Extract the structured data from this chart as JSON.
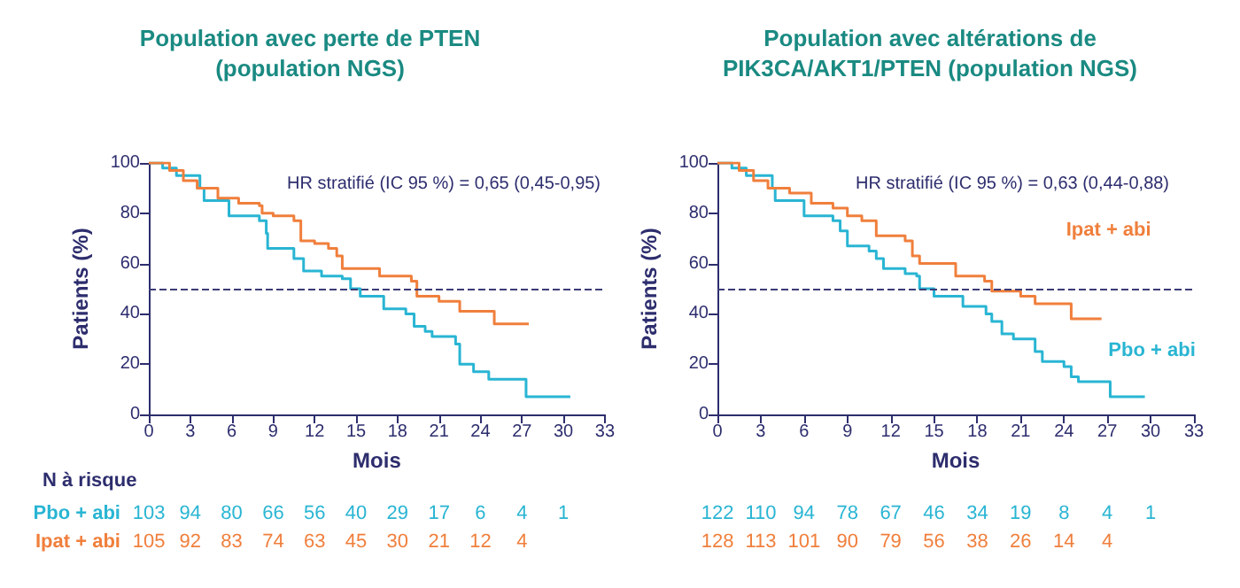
{
  "chart_data": [
    {
      "type": "step",
      "title": "Population avec perte de PTEN\n(population NGS)",
      "xlabel": "Mois",
      "ylabel": "Patients (%)",
      "xlim": [
        0,
        33
      ],
      "xticks": [
        0,
        3,
        6,
        9,
        12,
        15,
        18,
        21,
        24,
        27,
        30,
        33
      ],
      "ylim": [
        0,
        100
      ],
      "yticks": [
        0,
        20,
        40,
        60,
        80,
        100
      ],
      "grid": false,
      "legend": "bottom left",
      "marker": "none",
      "line_style": "solid",
      "ref_lines": [
        {
          "axis": "y",
          "value": 50,
          "color": "#3c3c78",
          "line_style": "dashed"
        }
      ],
      "annotations": [
        "HR stratifié (IC 95 %) = 0,65 (0,45-0,95)",
        "N à risque",
        "103 94 80 66 56 40 29 17 6 4 1",
        "105 92 83 74 63 45 30 21 12 4"
      ],
      "series": [
        {
          "name": "Pbo + abi",
          "color": "#29b5d3",
          "x": [
            0,
            1,
            2,
            3.7,
            4,
            5.8,
            8,
            8.5,
            8.6,
            10.5,
            10.5,
            11.2,
            12.5,
            14,
            14.6,
            15.3,
            16.7,
            17,
            18.6,
            19.2,
            20,
            20.5,
            22,
            22.2,
            22.5,
            23.5,
            24.6,
            27.2,
            27.3,
            30.5
          ],
          "values": [
            100,
            98,
            95,
            90,
            85,
            79,
            77,
            72,
            66,
            65,
            62,
            57,
            55,
            54,
            50,
            47,
            47,
            42,
            40,
            35,
            33,
            31,
            31,
            28,
            20,
            17,
            14,
            14,
            7,
            7
          ]
        },
        {
          "name": "Ipat + abi",
          "color": "#f07f3c",
          "x": [
            0,
            1.5,
            2.5,
            3.5,
            5,
            6.5,
            8,
            8.2,
            9,
            10.5,
            11,
            12,
            13,
            13.6,
            14,
            16.6,
            16.7,
            19,
            19.4,
            21,
            22.5,
            25,
            27.5
          ],
          "values": [
            100,
            97,
            93,
            90,
            86,
            84,
            83,
            80,
            79,
            77,
            69,
            68,
            66,
            63,
            58,
            58,
            55,
            53,
            47,
            45,
            41,
            36,
            36
          ]
        }
      ]
    },
    {
      "type": "step",
      "title": "Population avec altérations de\nPIK3CA/AKT1/PTEN (population NGS)",
      "xlabel": "Mois",
      "ylabel": "Patients (%)",
      "xlim": [
        0,
        33
      ],
      "xticks": [
        0,
        3,
        6,
        9,
        12,
        15,
        18,
        21,
        24,
        27,
        30,
        33
      ],
      "ylim": [
        0,
        100
      ],
      "yticks": [
        0,
        20,
        40,
        60,
        80,
        100
      ],
      "grid": false,
      "legend": false,
      "marker": "none",
      "line_style": "solid",
      "ref_lines": [
        {
          "axis": "y",
          "value": 50,
          "color": "#3c3c78",
          "line_style": "dashed"
        }
      ],
      "annotations": [
        "HR stratifié (IC 95 %) = 0,63 (0,44-0,88)",
        "122 110 94 78 67 46 34 19 8 4 1",
        "128 113 101 90 79 56 38 26 14 4"
      ],
      "series": [
        {
          "name": "Pbo + abi",
          "color": "#29b5d3",
          "x": [
            0,
            1,
            2,
            3.8,
            4,
            6,
            8,
            8.5,
            9,
            10.5,
            11,
            11.5,
            13,
            13.8,
            14,
            15,
            16.5,
            17,
            18.6,
            19,
            19.7,
            20.5,
            21.5,
            22,
            22.5,
            24,
            24.5,
            25,
            27,
            27.2,
            29.6
          ],
          "values": [
            100,
            98,
            95,
            90,
            85,
            79,
            77,
            73,
            67,
            65,
            62,
            58,
            56,
            55,
            50,
            47,
            47,
            43,
            40,
            37,
            32,
            30,
            30,
            25,
            21,
            19,
            15,
            13,
            13,
            7,
            7
          ]
        },
        {
          "name": "Ipat + abi",
          "color": "#f07f3c",
          "x": [
            0,
            1.5,
            2.5,
            3.5,
            5,
            6.5,
            8,
            9,
            10,
            11,
            13,
            13.5,
            14,
            16.3,
            16.5,
            18.5,
            19,
            21,
            22,
            24.5,
            26.6
          ],
          "values": [
            100,
            97,
            93,
            90,
            88,
            84,
            82,
            79,
            77,
            71,
            69,
            63,
            60,
            60,
            55,
            53,
            49,
            47,
            44,
            38,
            38
          ]
        }
      ]
    }
  ]
}
